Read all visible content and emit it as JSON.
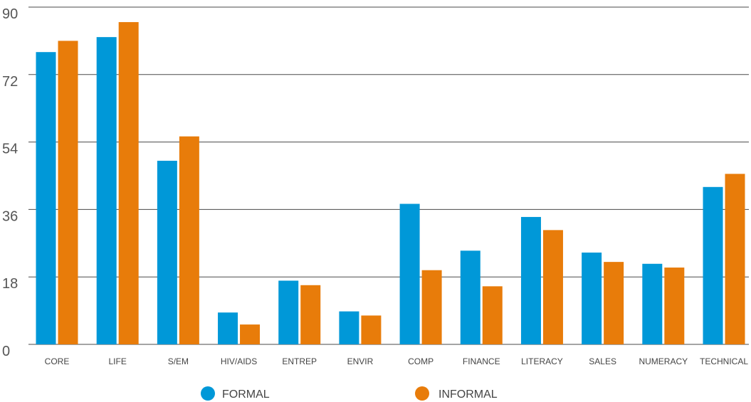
{
  "chart_data": {
    "type": "bar",
    "categories": [
      "CORE",
      "LIFE",
      "S/EM",
      "HIV/AIDS",
      "ENTREP",
      "ENVIR",
      "COMP",
      "FINANCE",
      "LITERACY",
      "SALES",
      "NUMERACY",
      "TECHNICAL"
    ],
    "series": [
      {
        "name": "FORMAL",
        "color": "#0098d8",
        "values": [
          78,
          82,
          49,
          8.5,
          17,
          8.8,
          37.5,
          25,
          34,
          24.5,
          21.5,
          42
        ]
      },
      {
        "name": "INFORMAL",
        "color": "#e87c0a",
        "values": [
          81,
          86,
          55.5,
          5.3,
          15.8,
          7.7,
          19.8,
          15.5,
          30.5,
          22,
          20.5,
          45.5
        ]
      }
    ],
    "yticks": [
      0,
      18,
      36,
      54,
      72,
      90
    ],
    "ylim": [
      0,
      90
    ],
    "grid": true,
    "legend_position": "bottom-center"
  }
}
